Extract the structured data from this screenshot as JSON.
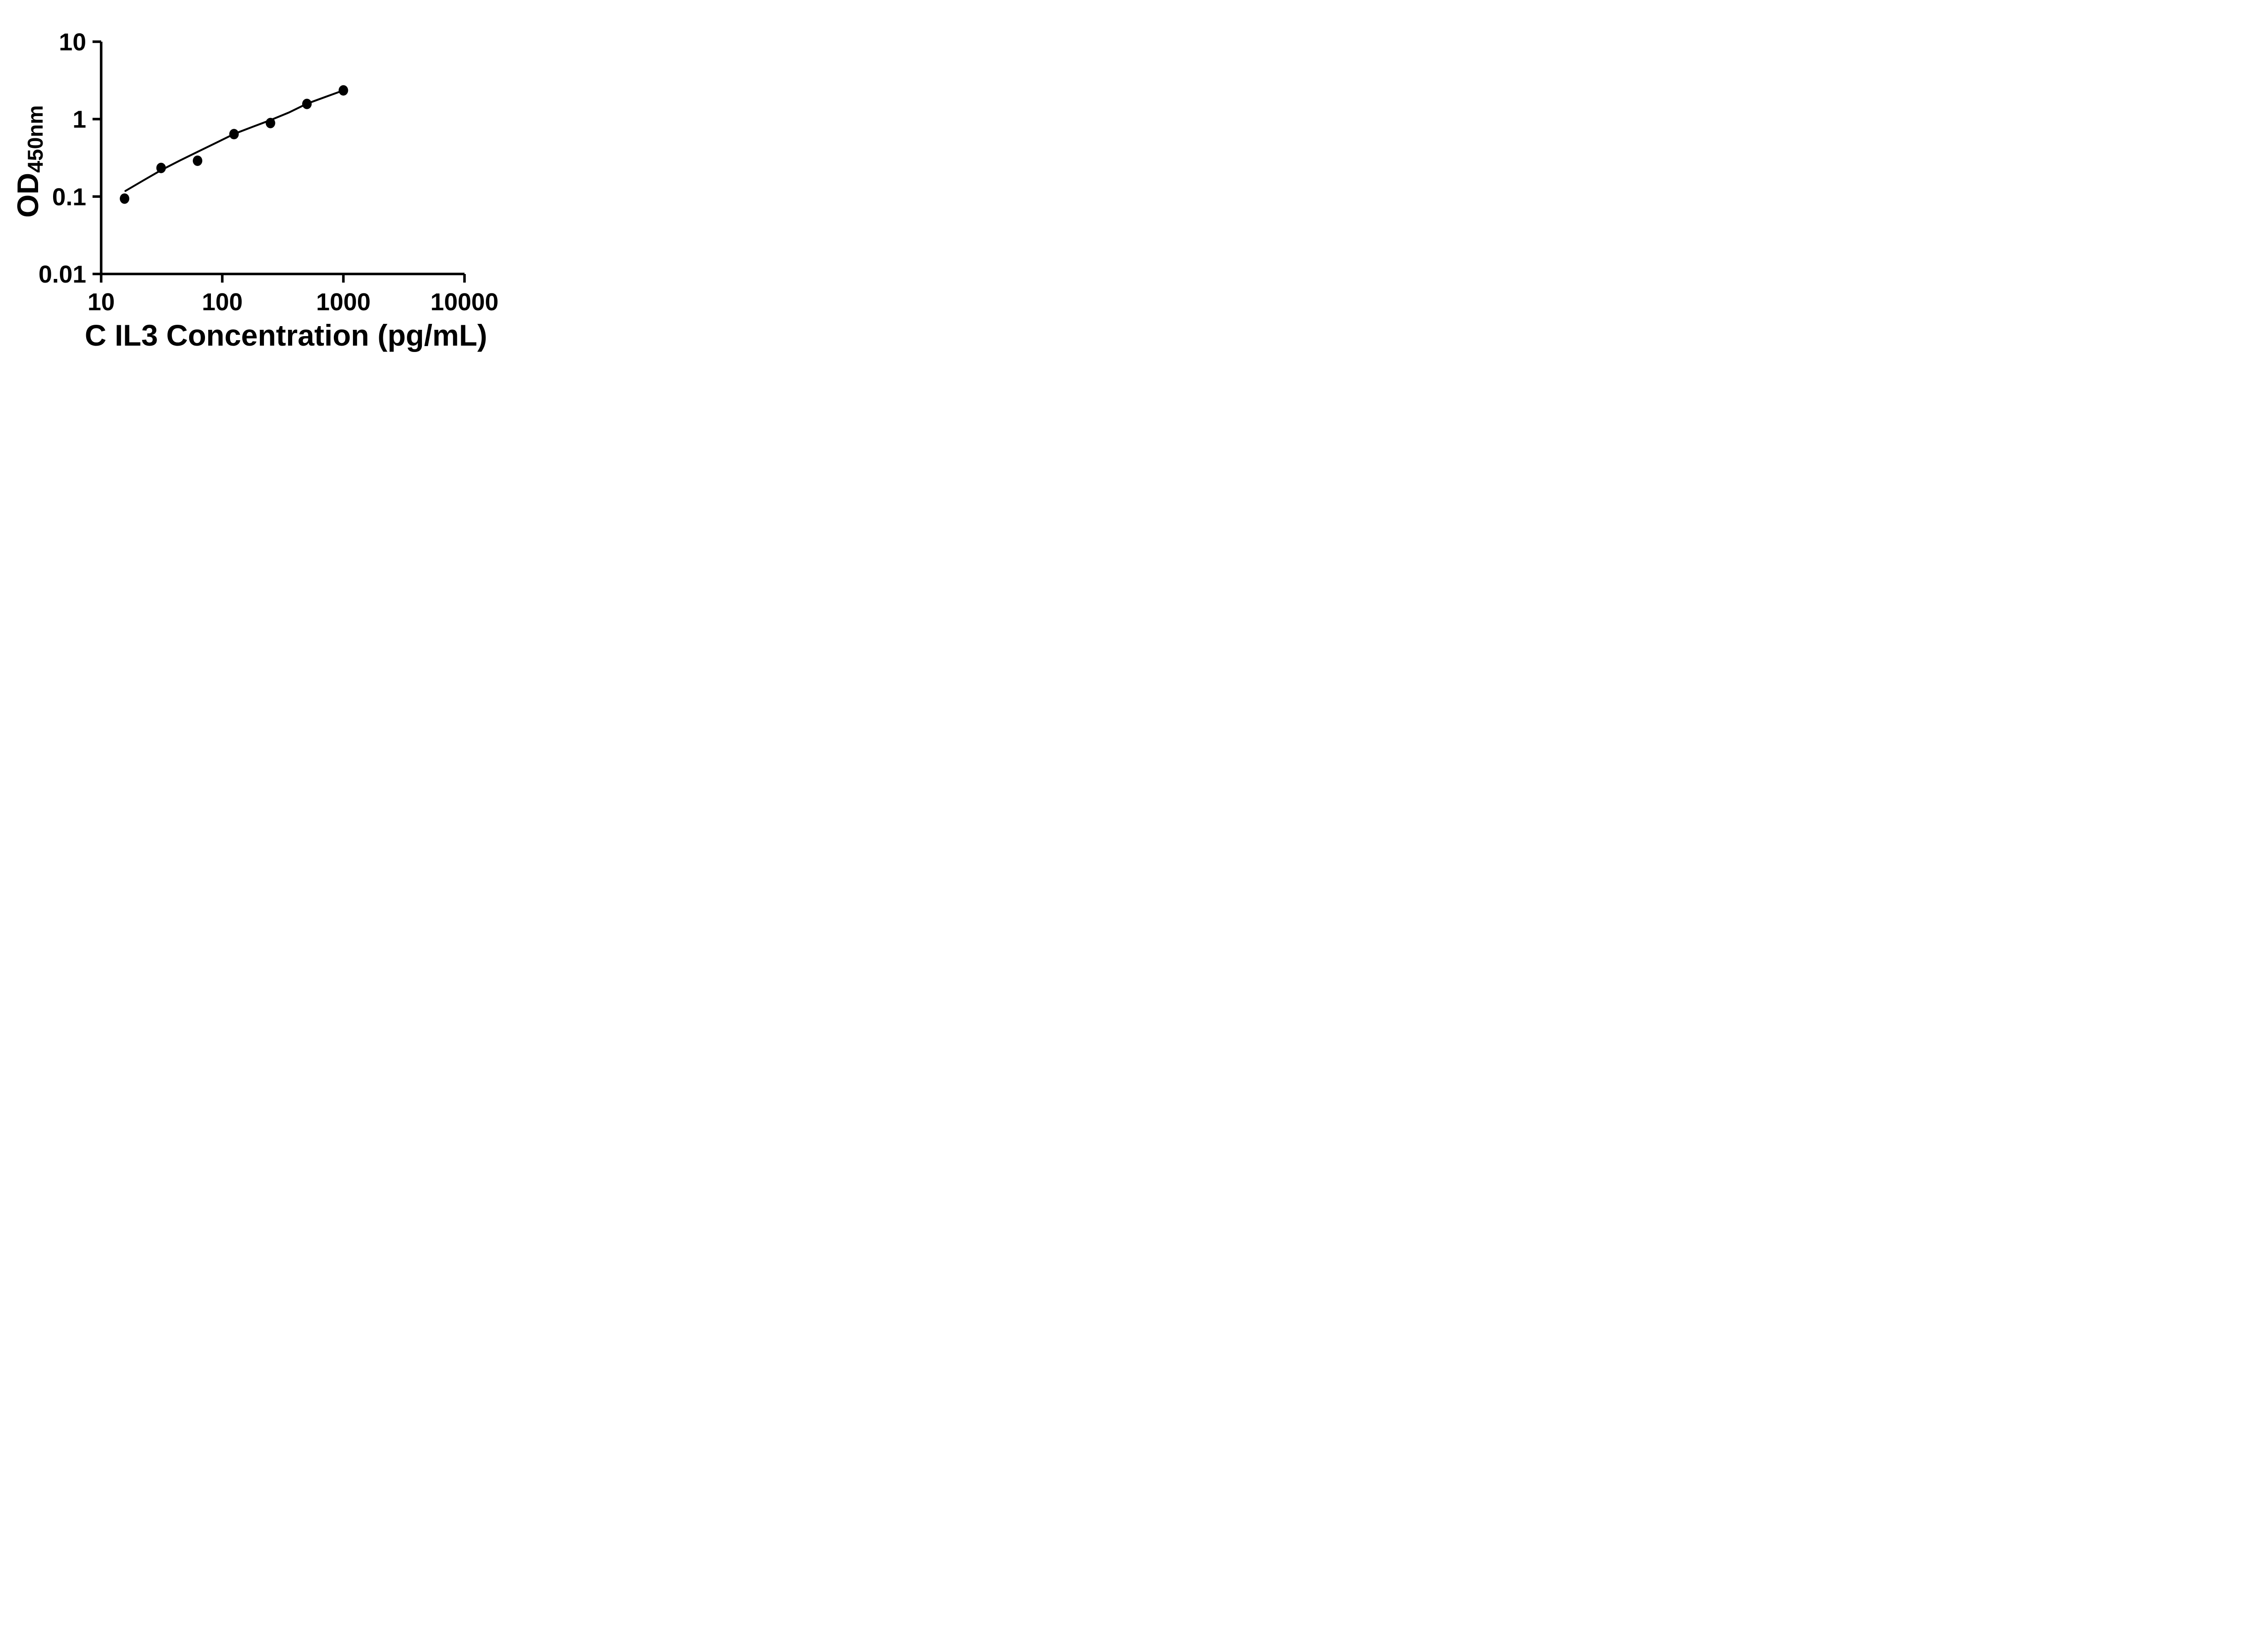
{
  "chart_data": {
    "type": "scatter",
    "title": "",
    "xlabel": "C IL3 Concentration (pg/mL)",
    "ylabel_main": "OD",
    "ylabel_sub": "450nm",
    "x_scale": "log",
    "y_scale": "log",
    "xlim": [
      10,
      10000
    ],
    "ylim": [
      0.01,
      10
    ],
    "x_ticks": [
      {
        "value": 10,
        "label": "10"
      },
      {
        "value": 100,
        "label": "100"
      },
      {
        "value": 1000,
        "label": "1000"
      },
      {
        "value": 10000,
        "label": "10000"
      }
    ],
    "y_ticks": [
      {
        "value": 10,
        "label": "10"
      },
      {
        "value": 1,
        "label": "1"
      },
      {
        "value": 0.1,
        "label": "0.1"
      },
      {
        "value": 0.01,
        "label": "0.01"
      }
    ],
    "grid": false,
    "legend": "none",
    "series": [
      {
        "name": "standard-curve-points",
        "marker": "filled-circle",
        "x": [
          15.6,
          31.25,
          62.5,
          125,
          250,
          500,
          1000
        ],
        "y": [
          0.094,
          0.234,
          0.29,
          0.64,
          0.89,
          1.57,
          2.35
        ]
      }
    ],
    "trend_line": {
      "name": "fit-curve",
      "x": [
        15.85,
        22.4,
        31.6,
        44.7,
        63.1,
        89.1,
        125.9,
        177.8,
        251.2,
        354.8,
        501.2,
        707.9,
        1000
      ],
      "y": [
        0.118,
        0.162,
        0.221,
        0.292,
        0.38,
        0.495,
        0.646,
        0.794,
        0.973,
        1.216,
        1.585,
        1.928,
        2.35
      ]
    },
    "colors": {
      "background": "#ffffff",
      "axis": "#000000",
      "points": "#000000",
      "line": "#000000",
      "text": "#000000"
    }
  }
}
